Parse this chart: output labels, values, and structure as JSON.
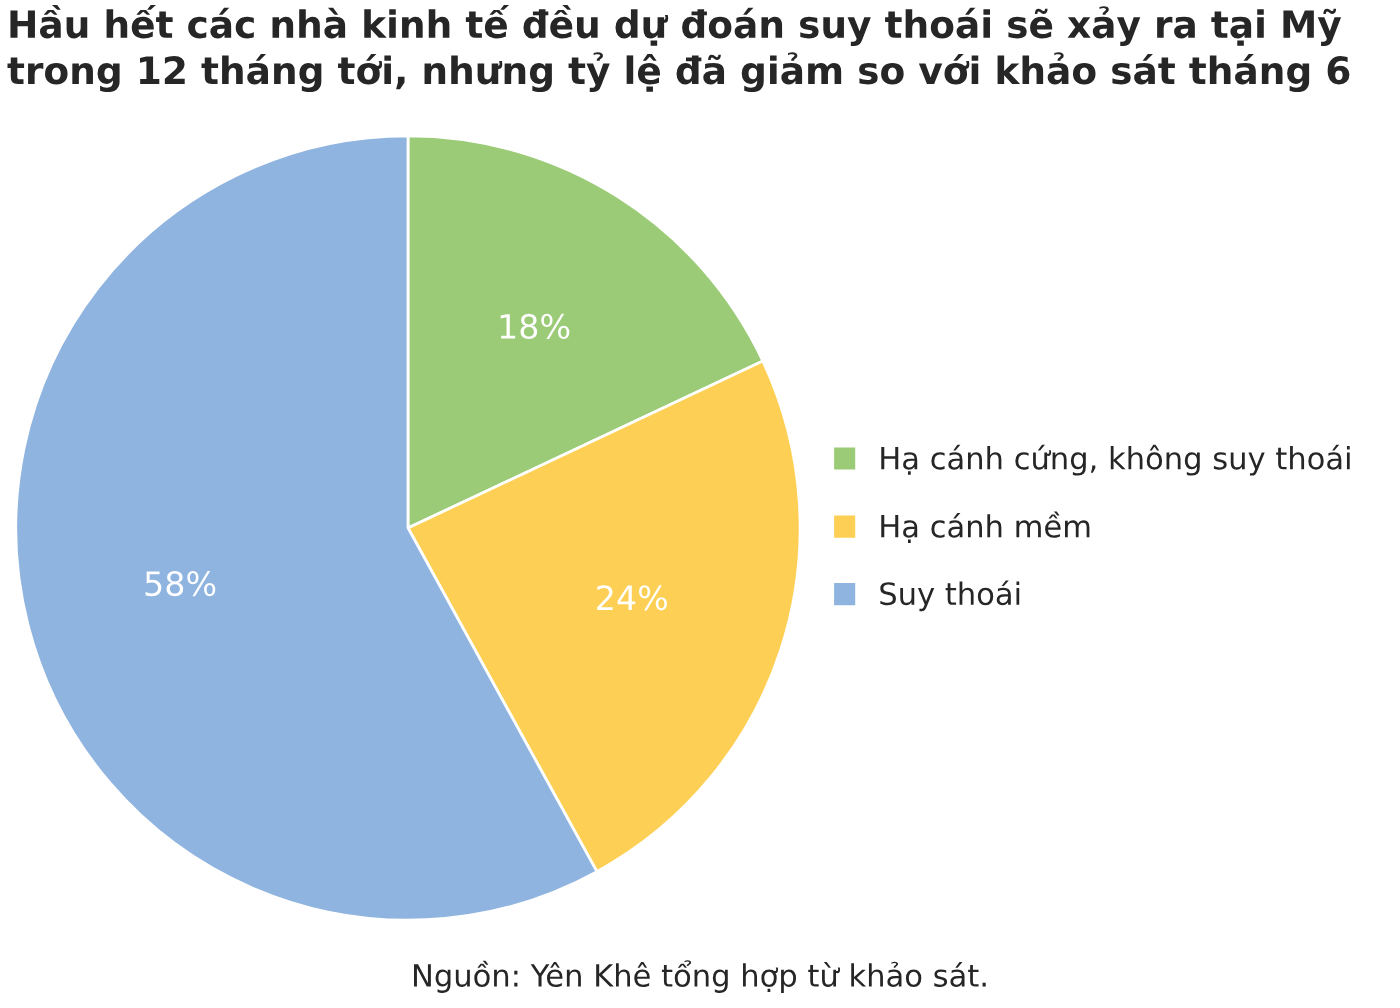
{
  "chart_data": {
    "type": "pie",
    "title": "Hầu hết các nhà kinh tế đều dự đoán suy thoái sẽ xảy ra tại Mỹ trong 12 tháng tới, nhưng tỷ lệ đã giảm so với khảo sát tháng 6",
    "categories": [
      "Hạ cánh cứng, không suy thoái",
      "Hạ cánh mềm",
      "Suy thoái"
    ],
    "values": [
      18,
      24,
      58
    ],
    "colors": [
      "#9bcb77",
      "#fdd055",
      "#8fb4e0"
    ],
    "value_labels": [
      "18%",
      "24%",
      "58%"
    ],
    "legend": "right",
    "annotations": [
      "Nguồn: Yên Khê tổng hợp từ khảo sát."
    ]
  }
}
